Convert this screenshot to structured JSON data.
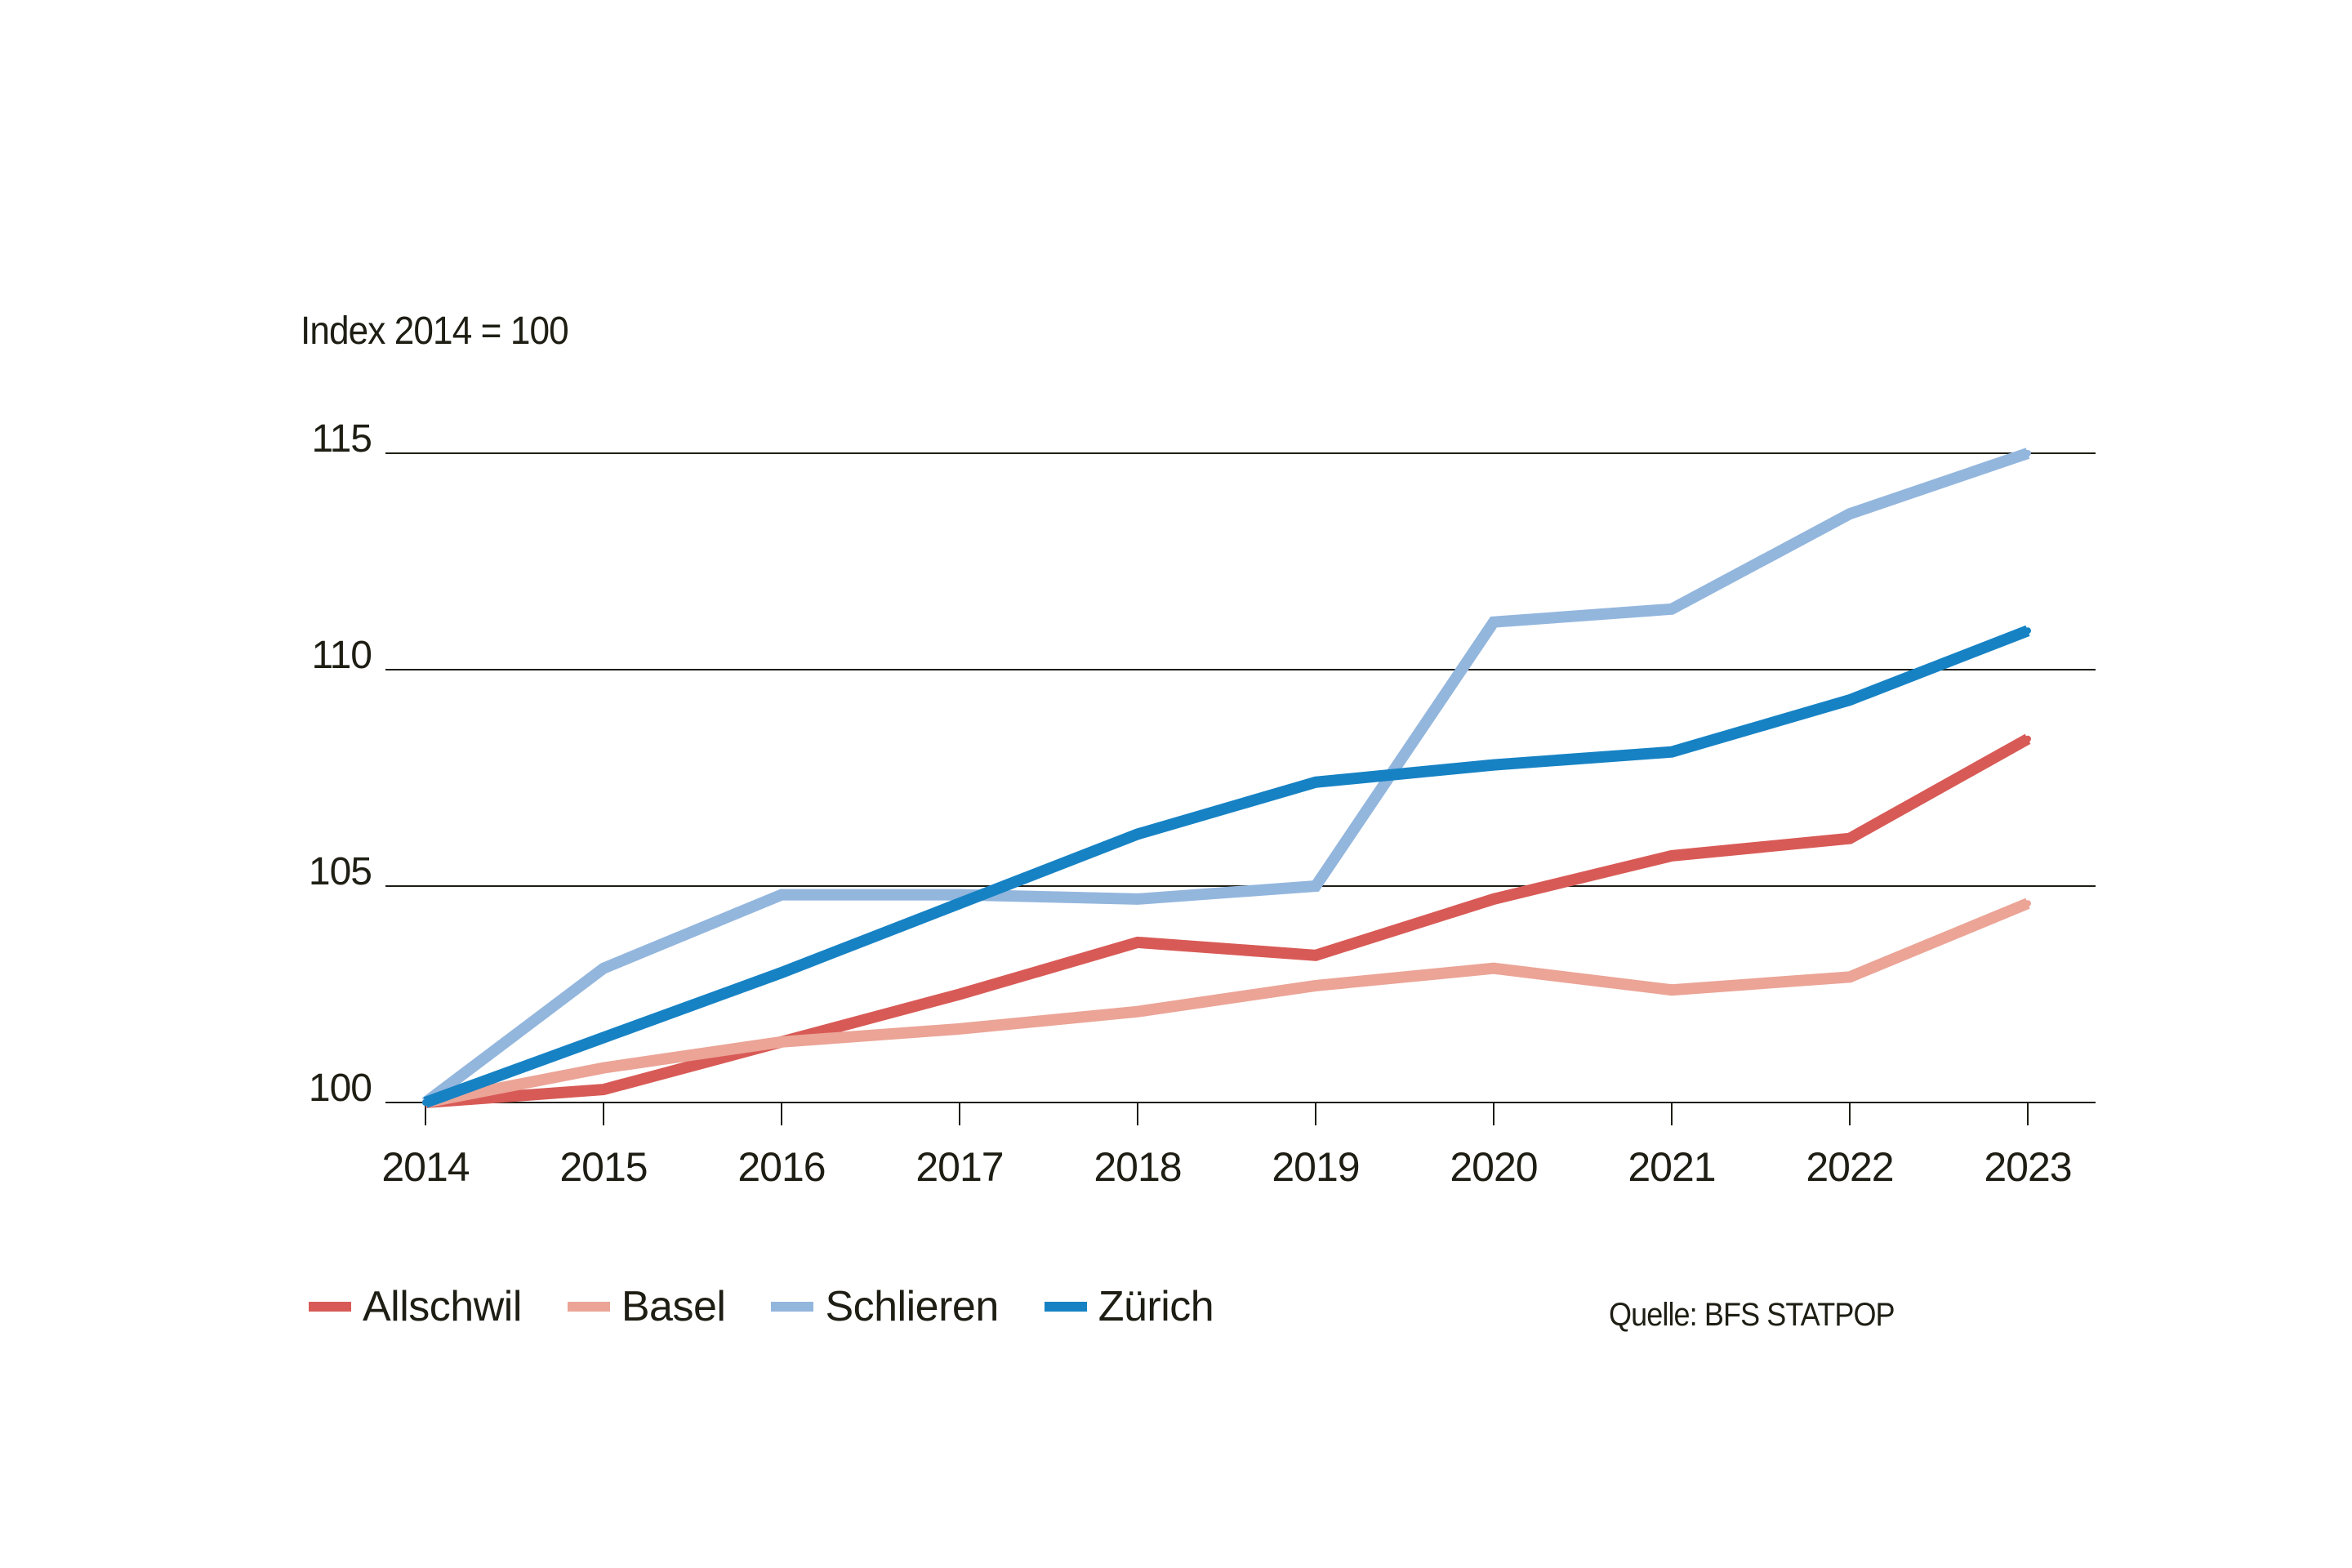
{
  "chart_data": {
    "type": "line",
    "ylabel": "Index 2014 = 100",
    "x": [
      "2014",
      "2015",
      "2016",
      "2017",
      "2018",
      "2019",
      "2020",
      "2021",
      "2022",
      "2023"
    ],
    "ylim": [
      100,
      115
    ],
    "yticks": [
      "100",
      "105",
      "110",
      "115"
    ],
    "grid": true,
    "legend_position": "bottom-left",
    "source": "Quelle: BFS STATPOP",
    "series": [
      {
        "name": "Allschwil",
        "color": "#d85a56",
        "values": [
          100.0,
          100.3,
          101.4,
          102.5,
          103.7,
          103.4,
          104.7,
          105.7,
          106.1,
          108.4
        ]
      },
      {
        "name": "Basel",
        "color": "#eba496",
        "values": [
          100.0,
          100.8,
          101.4,
          101.7,
          102.1,
          102.7,
          103.1,
          102.6,
          102.9,
          104.6
        ]
      },
      {
        "name": "Schlieren",
        "color": "#93b6dd",
        "values": [
          100.0,
          103.1,
          104.8,
          104.8,
          104.7,
          105.0,
          111.1,
          111.4,
          113.6,
          115.0
        ]
      },
      {
        "name": "Zürich",
        "color": "#1682c4",
        "values": [
          100.0,
          101.5,
          103.0,
          104.6,
          106.2,
          107.4,
          107.8,
          108.1,
          109.3,
          110.9
        ]
      }
    ]
  }
}
